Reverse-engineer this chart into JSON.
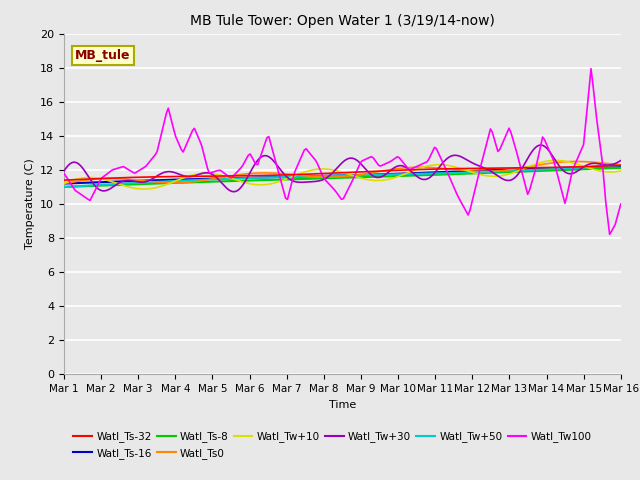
{
  "title": "MB Tule Tower: Open Water 1 (3/19/14-now)",
  "xlabel": "Time",
  "ylabel": "Temperature (C)",
  "ylim": [
    0,
    20
  ],
  "xlim": [
    0,
    15
  ],
  "bg_color": "#e8e8e8",
  "fig_color": "#e8e8e8",
  "grid_color": "#ffffff",
  "xtick_labels": [
    "Mar 1",
    "Mar 2",
    "Mar 3",
    "Mar 4",
    "Mar 5",
    "Mar 6",
    "Mar 7",
    "Mar 8",
    "Mar 9",
    "Mar 10",
    "Mar 11",
    "Mar 12",
    "Mar 13",
    "Mar 14",
    "Mar 15",
    "Mar 16"
  ],
  "legend_label": "MB_tule",
  "series": {
    "Watl_Ts-32": "#ff0000",
    "Watl_Ts-16": "#0000cc",
    "Watl_Ts-8": "#00cc00",
    "Watl_Ts0": "#ff8800",
    "Watl_Tw+10": "#dddd00",
    "Watl_Tw+30": "#9900bb",
    "Watl_Tw+50": "#00cccc",
    "Watl_Tw100": "#ff00ff"
  },
  "legend_order": [
    "Watl_Ts-32",
    "Watl_Ts-16",
    "Watl_Ts-8",
    "Watl_Ts0",
    "Watl_Tw+10",
    "Watl_Tw+30",
    "Watl_Tw+50",
    "Watl_Tw100"
  ]
}
